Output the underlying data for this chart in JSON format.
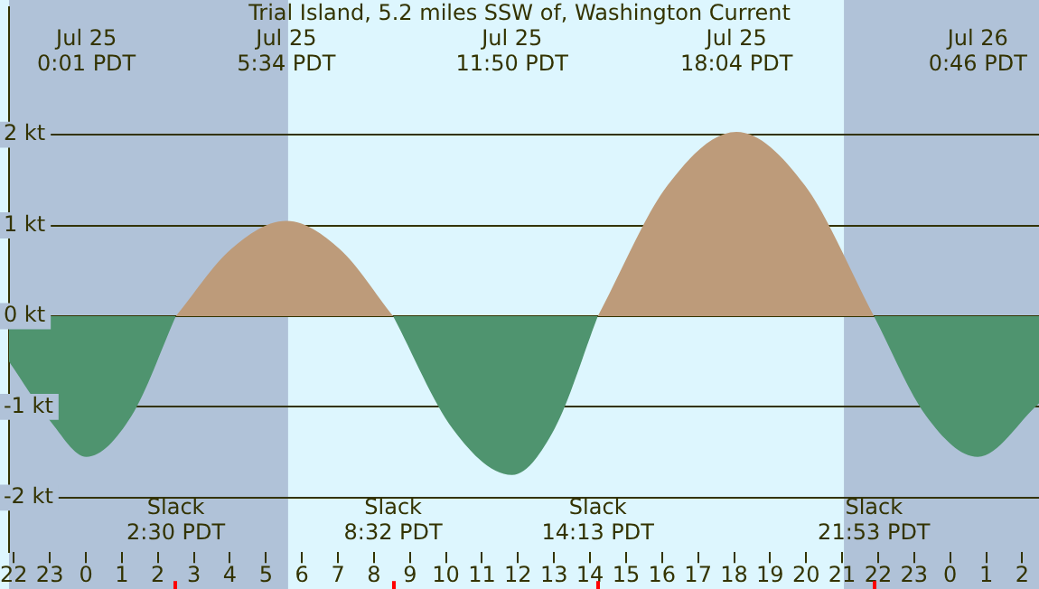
{
  "chart_data": {
    "type": "area",
    "title": "Trial Island, 5.2 miles SSW of, Washington Current",
    "x": [
      "--07-24T21:52",
      "--07-24T23:00",
      "--07-25T00:01",
      "--07-25T01:16",
      "--07-25T02:30",
      "--07-25T04:02",
      "--07-25T05:34",
      "--07-25T07:03",
      "--07-25T08:32",
      "--07-25T10:11",
      "--07-25T11:50",
      "--07-25T13:01",
      "--07-25T14:13",
      "--07-25T16:09",
      "--07-25T18:04",
      "--07-25T19:58",
      "--07-25T21:53",
      "--07-25T23:20",
      "--07-26T00:46",
      "--07-26T02:28"
    ],
    "series": [
      {
        "color": "#4f946f",
        "values": [
          -0.5,
          -1.15,
          -1.55,
          -1.1,
          0,
          null,
          null,
          null,
          0,
          -1.24,
          -1.75,
          -1.24,
          0,
          null,
          null,
          null,
          0,
          -1.1,
          -1.55,
          -0.96
        ]
      },
      {
        "color": "#bd9b7a",
        "values": [
          null,
          null,
          null,
          null,
          0,
          0.74,
          1.05,
          0.74,
          0,
          null,
          null,
          null,
          0,
          1.44,
          2.03,
          1.44,
          0,
          null,
          null,
          null
        ]
      }
    ],
    "xlim": [
      "--07-24T21:52",
      "--07-26T02:28"
    ],
    "xticks": [
      {
        "value": "--07-24T22:00",
        "label": "22"
      },
      {
        "value": "--07-24T23:00",
        "label": "23"
      },
      {
        "value": "--07-25T00:00",
        "label": "0"
      },
      {
        "value": "--07-25T01:00",
        "label": "1"
      },
      {
        "value": "--07-25T02:00",
        "label": "2"
      },
      {
        "value": "--07-25T03:00",
        "label": "3"
      },
      {
        "value": "--07-25T04:00",
        "label": "4"
      },
      {
        "value": "--07-25T05:00",
        "label": "5"
      },
      {
        "value": "--07-25T06:00",
        "label": "6"
      },
      {
        "value": "--07-25T07:00",
        "label": "7"
      },
      {
        "value": "--07-25T08:00",
        "label": "8"
      },
      {
        "value": "--07-25T09:00",
        "label": "9"
      },
      {
        "value": "--07-25T10:00",
        "label": "10"
      },
      {
        "value": "--07-25T11:00",
        "label": "11"
      },
      {
        "value": "--07-25T12:00",
        "label": "12"
      },
      {
        "value": "--07-25T13:00",
        "label": "13"
      },
      {
        "value": "--07-25T14:00",
        "label": "14"
      },
      {
        "value": "--07-25T15:00",
        "label": "15"
      },
      {
        "value": "--07-25T16:00",
        "label": "16"
      },
      {
        "value": "--07-25T17:00",
        "label": "17"
      },
      {
        "value": "--07-25T18:00",
        "label": "18"
      },
      {
        "value": "--07-25T19:00",
        "label": "19"
      },
      {
        "value": "--07-25T20:00",
        "label": "20"
      },
      {
        "value": "--07-25T21:00",
        "label": "21"
      },
      {
        "value": "--07-25T22:00",
        "label": "22"
      },
      {
        "value": "--07-25T23:00",
        "label": "23"
      },
      {
        "value": "--07-26T00:00",
        "label": "0"
      },
      {
        "value": "--07-26T01:00",
        "label": "1"
      },
      {
        "value": "--07-26T02:00",
        "label": "2"
      }
    ],
    "ylim": [
      -2.6,
      3.4
    ],
    "yticks": [
      {
        "value": -2,
        "label": "-2 kt"
      },
      {
        "value": -1,
        "label": "-1 kt"
      },
      {
        "value": 0,
        "label": "0 kt"
      },
      {
        "value": 1,
        "label": "1 kt"
      },
      {
        "value": 2,
        "label": "2 kt"
      }
    ],
    "grid": "y",
    "bands": [
      {
        "axis": "x",
        "from": "--07-24T21:52",
        "to": "--07-25T05:37",
        "color": "#b0c2d8"
      },
      {
        "axis": "x",
        "from": "--07-25T21:03",
        "to": "--07-26T02:28",
        "color": "#b0c2d8"
      }
    ],
    "annotations": [
      "Jul 25\n0:01 PDT",
      "Jul 25\n5:34 PDT",
      "Jul 25\n11:50 PDT",
      "Jul 25\n18:04 PDT",
      "Jul 26\n0:46 PDT",
      "Slack\n2:30 PDT",
      "Slack\n8:32 PDT",
      "Slack\n14:13 PDT",
      "Slack\n21:53 PDT"
    ]
  }
}
